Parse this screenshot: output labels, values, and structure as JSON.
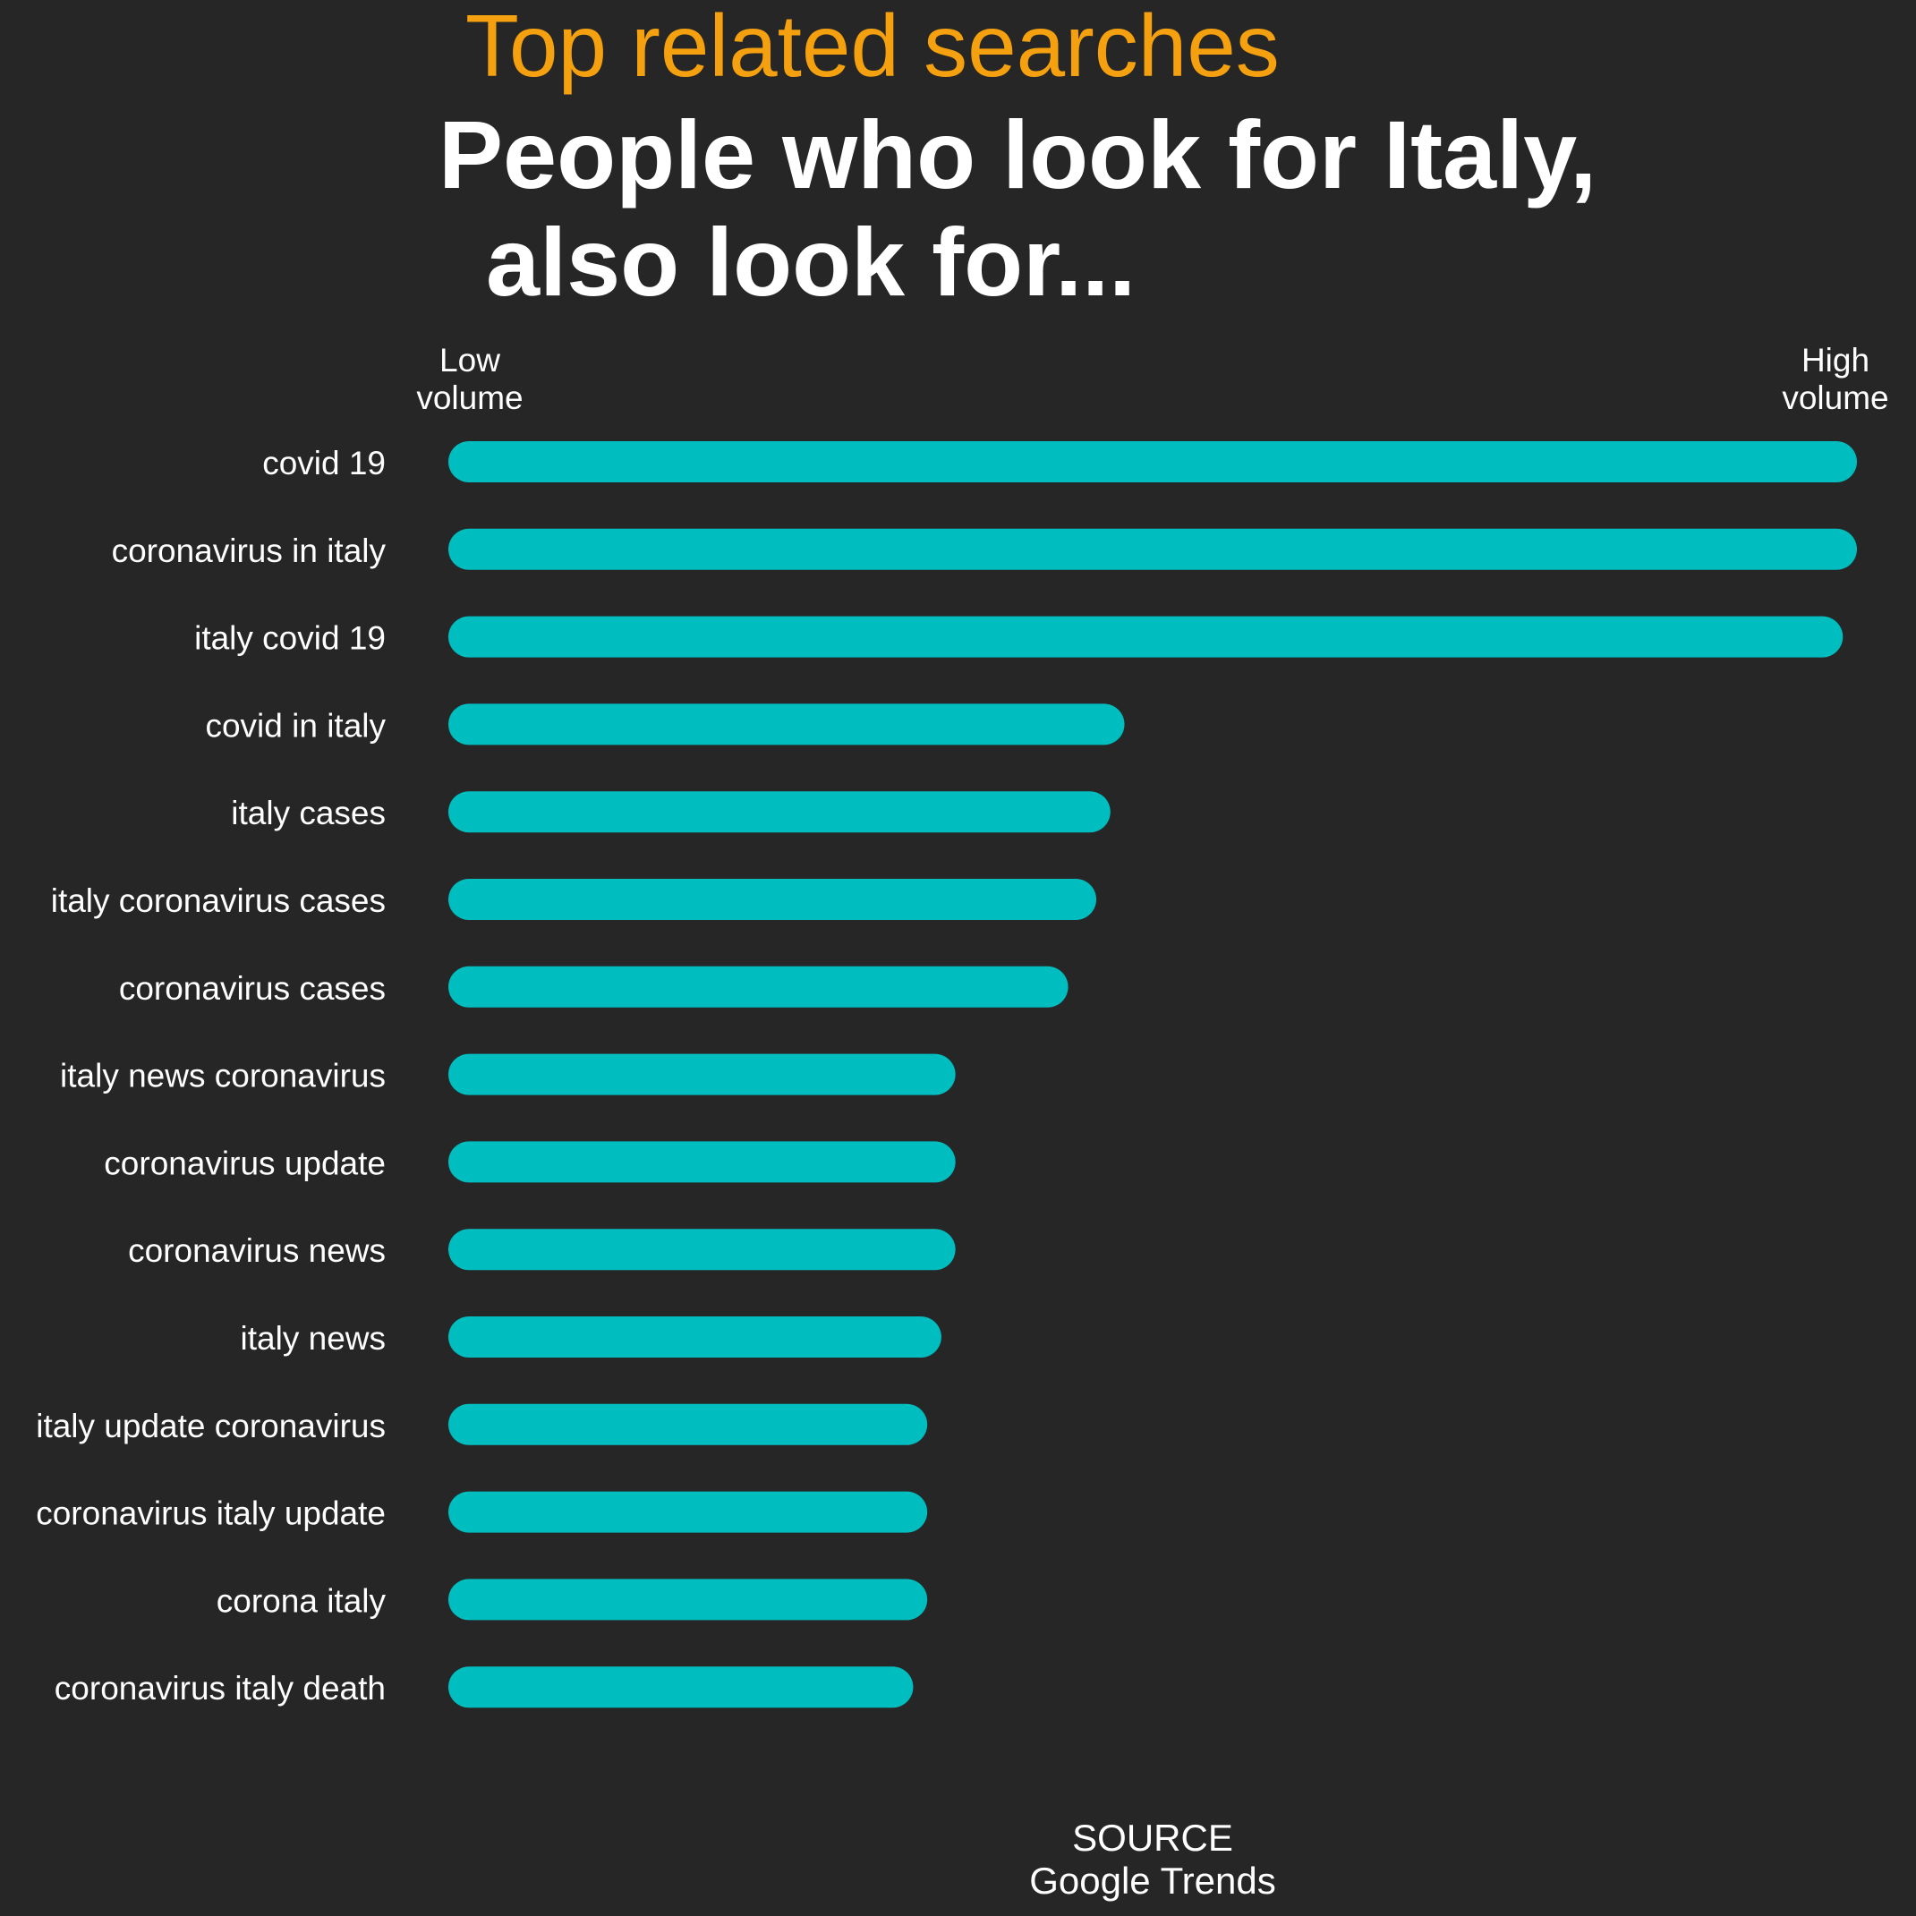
{
  "chart_data": {
    "type": "bar",
    "orientation": "horizontal",
    "title": "Top related searches",
    "subtitle_lines": [
      "People who look for Italy,",
      "also look for..."
    ],
    "axis": {
      "low_label": [
        "Low",
        "volume"
      ],
      "high_label": [
        "High",
        "volume"
      ],
      "xlim": [
        0,
        100
      ]
    },
    "categories": [
      "covid 19",
      "coronavirus in italy",
      "italy covid 19",
      "covid in italy",
      "italy cases",
      "italy coronavirus cases",
      "coronavirus cases",
      "italy news coronavirus",
      "coronavirus update",
      "coronavirus news",
      "italy news",
      "italy update coronavirus",
      "coronavirus italy update",
      "corona italy",
      "coronavirus italy death"
    ],
    "values": [
      100,
      100,
      99,
      48,
      47,
      46,
      44,
      36,
      36,
      36,
      35,
      34,
      34,
      34,
      33
    ],
    "source_lines": [
      "SOURCE",
      "Google Trends"
    ],
    "grid": false,
    "legend": "none"
  },
  "colors": {
    "background": "#262626",
    "title": "#F5A10F",
    "text": "#FFFFFF",
    "bar": "#00BDBF"
  }
}
